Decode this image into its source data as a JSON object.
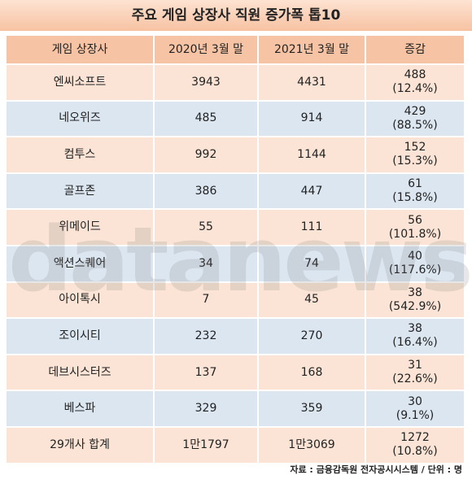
{
  "title": "주요 게임 상장사 직원 증가폭 톱10",
  "table": {
    "header": [
      "게임 상장사",
      "2020년 3월 말",
      "2021년 3월 말",
      "증감"
    ],
    "rows": [
      [
        "엔씨소프트",
        "3943",
        "4431",
        [
          "488",
          "(12.4%)"
        ]
      ],
      [
        "네오위즈",
        "485",
        "914",
        [
          "429",
          "(88.5%)"
        ]
      ],
      [
        "컴투스",
        "992",
        "1144",
        [
          "152",
          "(15.3%)"
        ]
      ],
      [
        "골프존",
        "386",
        "447",
        [
          "61",
          "(15.8%)"
        ]
      ],
      [
        "위메이드",
        "55",
        "111",
        [
          "56",
          "(101.8%)"
        ]
      ],
      [
        "액션스퀘어",
        "34",
        "74",
        [
          "40",
          "(117.6%)"
        ]
      ],
      [
        "아이톡시",
        "7",
        "45",
        [
          "38",
          "(542.9%)"
        ]
      ],
      [
        "조이시티",
        "232",
        "270",
        [
          "38",
          "(16.4%)"
        ]
      ],
      [
        "데브시스터즈",
        "137",
        "168",
        [
          "31",
          "(22.6%)"
        ]
      ],
      [
        "베스파",
        "329",
        "359",
        [
          "30",
          "(9.1%)"
        ]
      ]
    ],
    "total": [
      "29개사 합계",
      "1만1797",
      "1만3069",
      [
        "1272",
        "(10.8%)"
      ]
    ]
  },
  "watermark": "datanews",
  "source": "자료 : 금융감독원 전자공시시스템 / 단위 : 명"
}
